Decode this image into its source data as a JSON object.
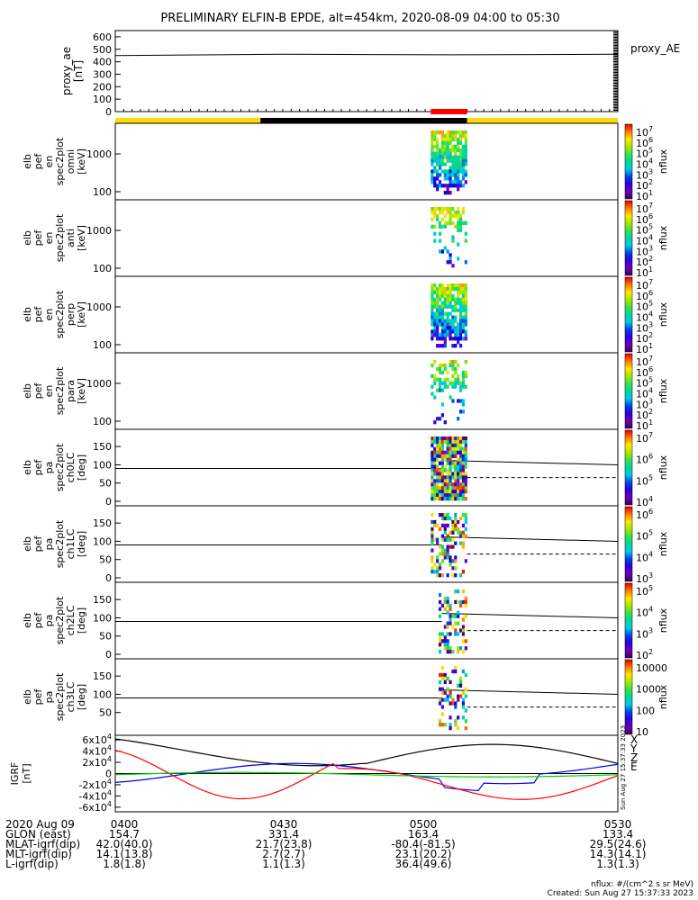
{
  "title": "PRELIMINARY ELFIN-B EPDE, alt=454km, 2020-08-09 04:00 to 05:30",
  "colors": {
    "yellow": "#ffdd00",
    "black": "#000000",
    "red": "#ff0000",
    "blue": "#0000ee",
    "green": "#00cc00",
    "cyan": "#00ccdd"
  },
  "chart_data": [
    {
      "type": "line",
      "name": "proxy_ae",
      "ylabel_lines": [
        "proxy_ae",
        "[nT]"
      ],
      "yticks": [
        "0",
        "100",
        "200",
        "300",
        "400",
        "500",
        "600"
      ],
      "ylim": [
        0,
        650
      ],
      "legend": "proxy_AE",
      "x_minutes": [
        0,
        15,
        30,
        45,
        60,
        75,
        90
      ],
      "values": [
        450,
        455,
        460,
        458,
        456,
        458,
        460
      ]
    },
    {
      "type": "bar",
      "name": "orbit_bar",
      "segments": [
        {
          "color": "yellow",
          "from": 0,
          "to": 26
        },
        {
          "color": "black",
          "from": 26,
          "to": 63
        },
        {
          "color": "yellow",
          "from": 63,
          "to": 90
        }
      ],
      "marker": {
        "color": "red",
        "from": 56.5,
        "to": 63
      }
    },
    {
      "type": "heatmap",
      "name": "en_omni",
      "ylabel_lines": [
        "elb",
        "pef",
        "en",
        "spec2plot",
        "omni",
        "[keV]"
      ],
      "yticks": [
        "100",
        "1000"
      ],
      "cbar_labels": [
        "10^7",
        "10^6",
        "10^5",
        "10^4",
        "10^3",
        "10^2",
        "10^1"
      ],
      "cbar_title": "nflux"
    },
    {
      "type": "heatmap",
      "name": "en_anti",
      "ylabel_lines": [
        "elb",
        "pef",
        "en",
        "spec2plot",
        "anti",
        "[keV]"
      ],
      "yticks": [
        "100",
        "1000"
      ],
      "cbar_labels": [
        "10^7",
        "10^6",
        "10^5",
        "10^4",
        "10^3",
        "10^2",
        "10^1"
      ],
      "cbar_title": "nflux"
    },
    {
      "type": "heatmap",
      "name": "en_perp",
      "ylabel_lines": [
        "elb",
        "pef",
        "en",
        "spec2plot",
        "perp",
        "[keV]"
      ],
      "yticks": [
        "100",
        "1000"
      ],
      "cbar_labels": [
        "10^7",
        "10^6",
        "10^5",
        "10^4",
        "10^3",
        "10^2",
        "10^1"
      ],
      "cbar_title": "nflux"
    },
    {
      "type": "heatmap",
      "name": "en_para",
      "ylabel_lines": [
        "elb",
        "pef",
        "en",
        "spec2plot",
        "para",
        "[keV]"
      ],
      "yticks": [
        "100",
        "1000"
      ],
      "cbar_labels": [
        "10^7",
        "10^6",
        "10^5",
        "10^4",
        "10^3",
        "10^2",
        "10^1"
      ],
      "cbar_title": "nflux"
    },
    {
      "type": "heatmap",
      "name": "pa_ch0LC",
      "ylabel_lines": [
        "elb",
        "pef",
        "pa",
        "spec2plot",
        "ch0LC",
        "[deg]"
      ],
      "yticks": [
        "0",
        "50",
        "100",
        "150"
      ],
      "cbar_labels": [
        "10^7",
        "10^6",
        "10^5",
        "10^4"
      ],
      "cbar_title": "nflux"
    },
    {
      "type": "heatmap",
      "name": "pa_ch1LC",
      "ylabel_lines": [
        "elb",
        "pef",
        "pa",
        "spec2plot",
        "ch1LC",
        "[deg]"
      ],
      "yticks": [
        "0",
        "50",
        "100",
        "150"
      ],
      "cbar_labels": [
        "10^6",
        "10^5",
        "10^4",
        "10^3"
      ],
      "cbar_title": "nflux"
    },
    {
      "type": "heatmap",
      "name": "pa_ch2LC",
      "ylabel_lines": [
        "elb",
        "pef",
        "pa",
        "spec2plot",
        "ch2LC",
        "[deg]"
      ],
      "yticks": [
        "0",
        "50",
        "100",
        "150"
      ],
      "cbar_labels": [
        "10^5",
        "10^4",
        "10^3",
        "10^2"
      ],
      "cbar_title": "nflux"
    },
    {
      "type": "heatmap",
      "name": "pa_ch3LC",
      "ylabel_lines": [
        "elb",
        "pef",
        "pa",
        "spec2plot",
        "ch3LC",
        "[deg]"
      ],
      "yticks": [
        "50",
        "100",
        "150"
      ],
      "cbar_labels": [
        "10000",
        "1000",
        "100",
        "10"
      ],
      "cbar_title": "nflux"
    },
    {
      "type": "line",
      "name": "igrf",
      "ylabel_lines": [
        "IGRF",
        "[nT]"
      ],
      "yticks": [
        "-6x10^4",
        "-4x10^4",
        "-2x10^4",
        "0",
        "2x10^4",
        "4x10^4",
        "6x10^4"
      ],
      "ylim": [
        -65000,
        65000
      ],
      "legend": [
        "X",
        "Y",
        "Z",
        "E"
      ],
      "series": [
        {
          "name": "X",
          "color": "black"
        },
        {
          "name": "Y",
          "color": "blue"
        },
        {
          "name": "Z",
          "color": "red"
        },
        {
          "name": "E",
          "color": "green"
        }
      ]
    }
  ],
  "footer": {
    "rows": [
      {
        "label": "2020 Aug 09",
        "vals": [
          "0400",
          "0430",
          "0500",
          "0530"
        ]
      },
      {
        "label": "GLON (east)",
        "vals": [
          "154.7",
          "331.4",
          "163.4",
          "133.4"
        ]
      },
      {
        "label": "MLAT-igrf(dip)",
        "vals": [
          "42.0(40.0)",
          "21.7(23.8)",
          "-80.4(-81.5)",
          "29.5(24.6)"
        ]
      },
      {
        "label": "MLT-igrf(dip)",
        "vals": [
          "14.1(13.8)",
          "2.7(2.7)",
          "23.1(20.2)",
          "14.3(14.1)"
        ]
      },
      {
        "label": "L-igrf(dip)",
        "vals": [
          "1.8(1.8)",
          "1.1(1.3)",
          "36.4(49.6)",
          "1.3(1.3)"
        ]
      }
    ],
    "units_note": "nflux: #/(cm^2 s sr MeV)",
    "created": "Created: Sun Aug 27 15:37:33 2023",
    "side_stamp": "Sun Aug 27 15:37:33 2023"
  }
}
